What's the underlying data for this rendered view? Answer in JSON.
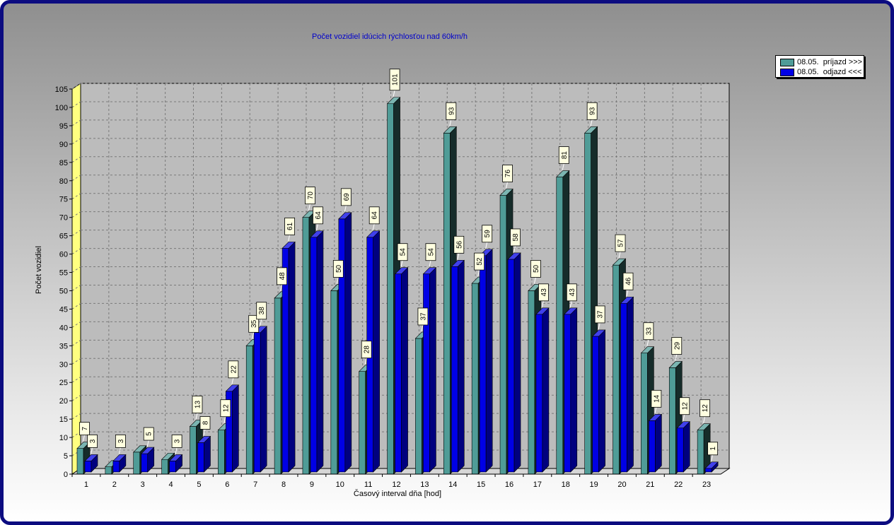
{
  "chart_data": {
    "type": "bar",
    "title": "Počet vozidiel idúcich rýchlosťou nad 60km/h",
    "xlabel": "Časový interval dňa [hod]",
    "ylabel": "Počet vozidiel",
    "categories": [
      "1",
      "2",
      "3",
      "4",
      "5",
      "6",
      "7",
      "8",
      "9",
      "10",
      "11",
      "12",
      "13",
      "14",
      "15",
      "16",
      "17",
      "18",
      "19",
      "20",
      "21",
      "22",
      "23"
    ],
    "ylim": [
      0,
      105
    ],
    "yticks": [
      "0",
      "5",
      "10",
      "15",
      "20",
      "25",
      "30",
      "35",
      "40",
      "45",
      "50",
      "55",
      "60",
      "65",
      "70",
      "75",
      "80",
      "85",
      "90",
      "95",
      "100",
      "105"
    ],
    "grid": true,
    "legend_position": "top-right",
    "series": [
      {
        "name": "08.05.  príjazd >>>",
        "color": "#4f9c97",
        "values": [
          7,
          2,
          6,
          4,
          13,
          12,
          35,
          48,
          70,
          50,
          28,
          101,
          37,
          93,
          52,
          76,
          50,
          81,
          93,
          57,
          33,
          29,
          12
        ],
        "labels": [
          "7",
          "",
          "",
          "",
          "13",
          "12",
          "35",
          "48",
          "70",
          "50",
          "28",
          "101",
          "37",
          "93",
          "52",
          "76",
          "50",
          "81",
          "93",
          "57",
          "33",
          "29",
          "12"
        ]
      },
      {
        "name": "08.05.  odjazd <<<",
        "color": "#0000e6",
        "values": [
          3,
          3,
          5,
          3,
          8,
          22,
          38,
          61,
          64,
          69,
          64,
          54,
          54,
          56,
          59,
          58,
          43,
          43,
          37,
          46,
          14,
          12,
          1
        ],
        "labels": [
          "3",
          "3",
          "5",
          "3",
          "8",
          "22",
          "38",
          "61",
          "64",
          "69",
          "64",
          "54",
          "54",
          "56",
          "59",
          "58",
          "43",
          "43",
          "37",
          "46",
          "14",
          "12",
          "1"
        ]
      }
    ]
  }
}
